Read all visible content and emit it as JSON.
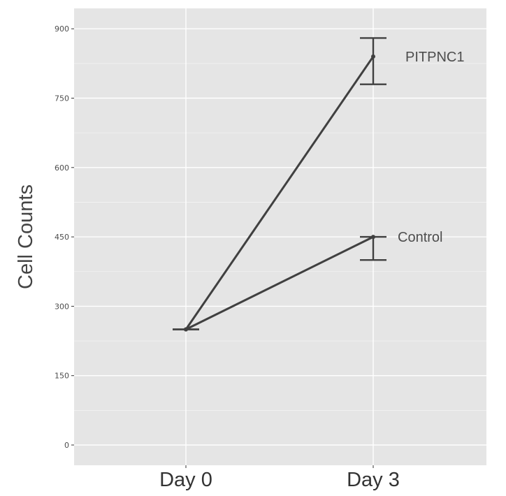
{
  "chart_data": {
    "type": "line",
    "title": "",
    "xlabel": "",
    "ylabel": "Cell Counts",
    "categories": [
      "Day 0",
      "Day 3"
    ],
    "ylim": [
      -45,
      945
    ],
    "yticks": [
      0,
      150,
      300,
      450,
      600,
      750,
      900
    ],
    "grid": true,
    "legend": "none",
    "series": [
      {
        "name": "PITPNC1",
        "values": [
          250,
          840
        ],
        "error": [
          {
            "low": 250,
            "high": 250
          },
          {
            "low": 780,
            "high": 880
          }
        ]
      },
      {
        "name": "Control",
        "values": [
          250,
          450
        ],
        "error": [
          {
            "low": 250,
            "high": 250
          },
          {
            "low": 400,
            "high": 450
          }
        ]
      }
    ],
    "colors": {
      "panel": "#e5e5e5",
      "grid": "#ffffff",
      "line": "#404040",
      "text": "#4d4d4d"
    }
  }
}
